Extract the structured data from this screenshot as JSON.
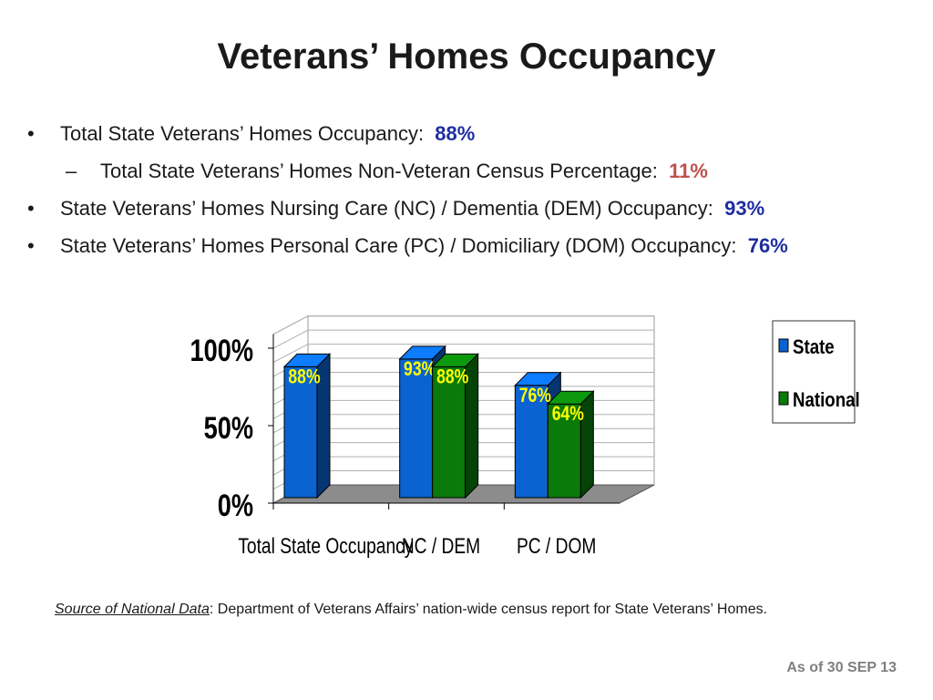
{
  "title": "Veterans’ Homes Occupancy",
  "bullets": [
    {
      "level": 1,
      "marker": "•",
      "text": "Total State Veterans’ Homes Occupancy:",
      "value": "88%",
      "value_color": "blue"
    },
    {
      "level": 2,
      "marker": "–",
      "text": "Total State Veterans’ Homes Non-Veteran Census Percentage:",
      "value": "11%",
      "value_color": "red"
    },
    {
      "level": 1,
      "marker": "•",
      "text": "State Veterans’ Homes Nursing Care (NC) / Dementia (DEM) Occupancy:",
      "value": "93%",
      "value_color": "blue"
    },
    {
      "level": 1,
      "marker": "•",
      "text": "State Veterans’ Homes Personal Care (PC) / Domiciliary (DOM) Occupancy:",
      "value": "76%",
      "value_color": "blue"
    }
  ],
  "chart_data": {
    "type": "bar",
    "title": "",
    "categories": [
      "Total State Occupancy",
      "NC / DEM",
      "PC / DOM"
    ],
    "series": [
      {
        "name": "State",
        "values": [
          88,
          93,
          76
        ],
        "labels": [
          "88%",
          "93%",
          "76%"
        ],
        "color": "#0a63d0"
      },
      {
        "name": "National",
        "values": [
          null,
          88,
          64
        ],
        "labels": [
          "",
          "88%",
          "64%"
        ],
        "color": "#0a7a0a"
      }
    ],
    "ylim": [
      0,
      100
    ],
    "yticks": [
      "0%",
      "50%",
      "100%"
    ],
    "grid": true,
    "three_d": true,
    "legend": "right",
    "data_label_color": "#ffff00"
  },
  "source": {
    "label": "Source of National Data",
    "text": ":  Department of Veterans Affairs’ nation-wide census report for State Veterans’ Homes."
  },
  "as_of": "As of  30 SEP 13",
  "colors": {
    "blue_value": "#1f2ea0",
    "red_value": "#c0504d",
    "floor": "#8c8c8c"
  }
}
